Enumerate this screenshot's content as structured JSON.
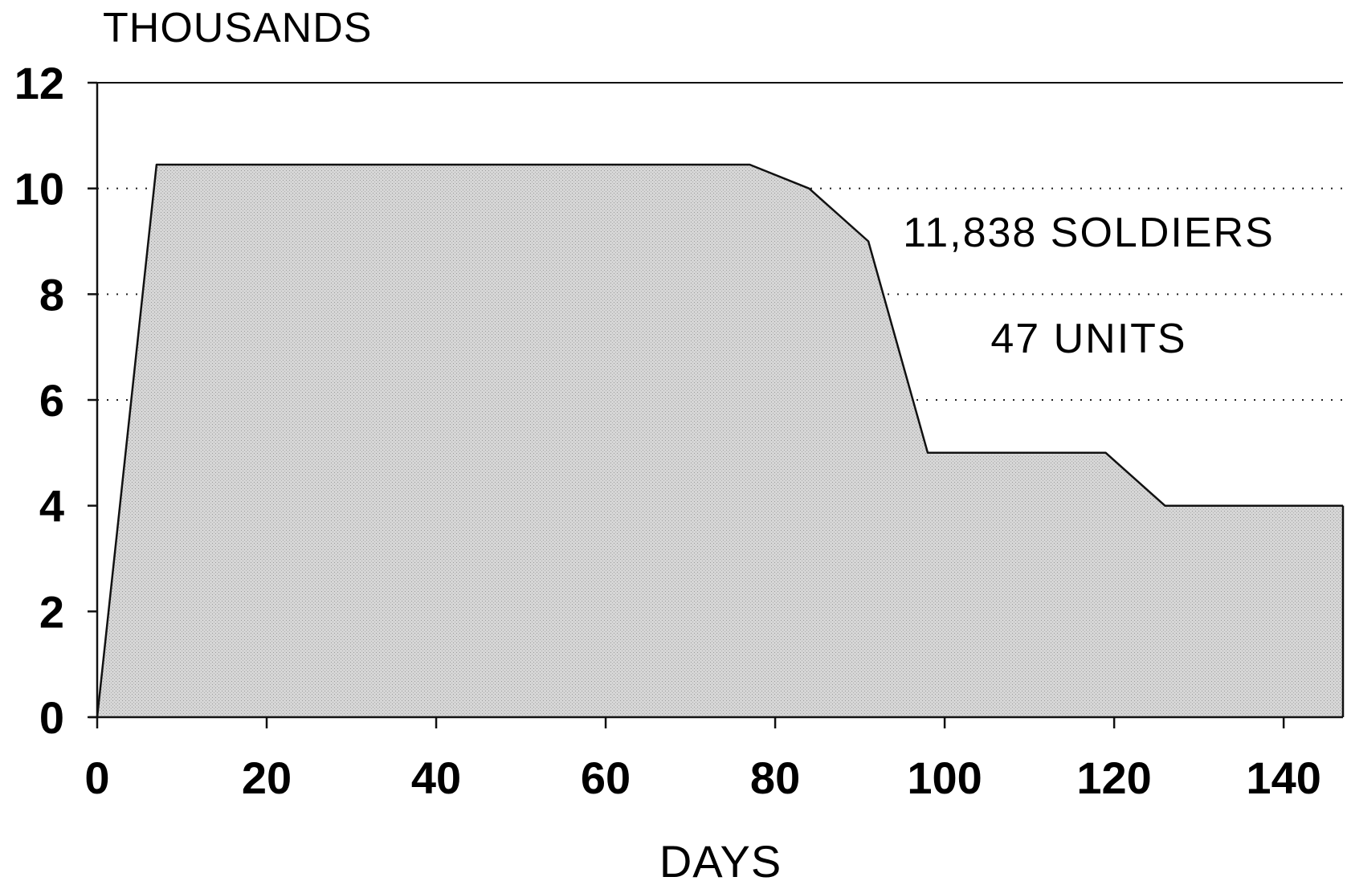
{
  "chart_data": {
    "type": "area",
    "title": "",
    "ylabel": "THOUSANDS",
    "xlabel": "DAYS",
    "xlim": [
      0,
      147
    ],
    "ylim": [
      0,
      12
    ],
    "xticks": [
      0,
      20,
      40,
      60,
      80,
      100,
      120,
      140
    ],
    "yticks": [
      0,
      2,
      4,
      6,
      8,
      10,
      12
    ],
    "grid_dotted_y": [
      6,
      8,
      10
    ],
    "grid_dotted_x_from": 84,
    "series": [
      {
        "x": [
          0,
          7,
          77,
          84,
          91,
          98,
          119,
          126,
          147
        ],
        "y": [
          0,
          10.45,
          10.45,
          10.0,
          9.0,
          5.0,
          5.0,
          4.0,
          4.0
        ]
      }
    ],
    "annotations": [
      {
        "text": "11,838 SOLDIERS",
        "x": 117,
        "y": 8.9
      },
      {
        "text": "47 UNITS",
        "x": 117,
        "y": 6.9
      }
    ],
    "fill_color": "#d4d4d4",
    "line_color": "#111111"
  }
}
